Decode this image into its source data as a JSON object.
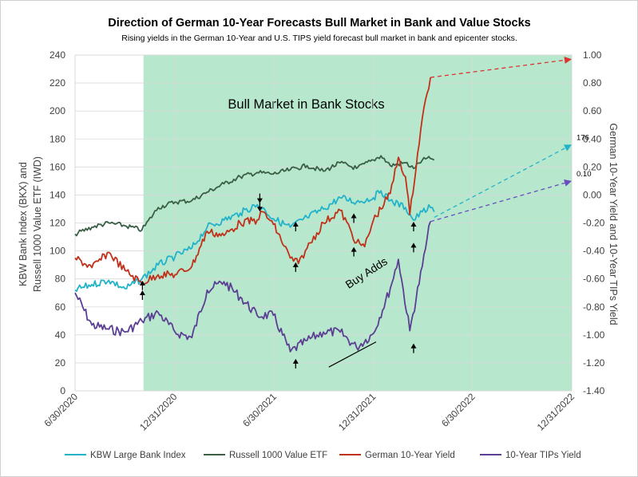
{
  "chart_data": {
    "type": "line",
    "title": "Direction of German 10-Year Forecasts Bull Market in Bank and Value Stocks",
    "subtitle": "Rising yields in the German 10-Year and U.S. TIPS yield forecast bull market in bank and epicenter stocks.",
    "ylabel_left": "KBW Bank Index (BKX) and Russell 1000 Value ETF (IWD)",
    "ylabel_right": "German 10-Year Yield and 10-Year TIPs Yield",
    "ylim_left": [
      0,
      240
    ],
    "ylim_right": [
      -1.4,
      1.0
    ],
    "xlim": [
      "2020-06-30",
      "2022-12-31"
    ],
    "x_ticks": [
      "6/30/2020",
      "12/31/2020",
      "6/30/2021",
      "12/31/2021",
      "6/30/2022",
      "12/31/2022"
    ],
    "y_ticks_left": [
      "0",
      "20",
      "40",
      "60",
      "80",
      "100",
      "120",
      "140",
      "160",
      "180",
      "200",
      "220",
      "240"
    ],
    "y_ticks_right": [
      "-1.40",
      "-1.20",
      "-1.00",
      "-0.80",
      "-0.60",
      "-0.40",
      "-0.20",
      "0.00",
      "0.20",
      "0.40",
      "0.60",
      "0.80",
      "1.00"
    ],
    "shaded_region": {
      "start": "2020-11-03",
      "end": "2022-12-31",
      "label": "Bull Market in Bank Stocks",
      "color": "#b7e8cd"
    },
    "series": [
      {
        "name": "KBW Large Bank Index",
        "axis": "left",
        "color": "#22b2c9",
        "points": [
          [
            "2020-06-30",
            72
          ],
          [
            "2020-07-31",
            76
          ],
          [
            "2020-08-31",
            79
          ],
          [
            "2020-09-30",
            73
          ],
          [
            "2020-10-31",
            80
          ],
          [
            "2020-11-30",
            90
          ],
          [
            "2020-12-31",
            96
          ],
          [
            "2021-01-31",
            102
          ],
          [
            "2021-02-28",
            117
          ],
          [
            "2021-03-31",
            122
          ],
          [
            "2021-04-30",
            127
          ],
          [
            "2021-05-31",
            133
          ],
          [
            "2021-06-15",
            129
          ],
          [
            "2021-06-30",
            123
          ],
          [
            "2021-07-31",
            117
          ],
          [
            "2021-08-31",
            124
          ],
          [
            "2021-09-30",
            130
          ],
          [
            "2021-10-31",
            138
          ],
          [
            "2021-11-30",
            135
          ],
          [
            "2021-12-31",
            138
          ],
          [
            "2022-01-14",
            143
          ],
          [
            "2022-01-31",
            136
          ],
          [
            "2022-02-28",
            131
          ],
          [
            "2022-03-15",
            122
          ],
          [
            "2022-03-31",
            128
          ],
          [
            "2022-04-15",
            131
          ],
          [
            "2022-04-22",
            128
          ]
        ]
      },
      {
        "name": "Russell 1000 Value ETF",
        "axis": "left",
        "color": "#3a5f45",
        "points": [
          [
            "2020-06-30",
            112
          ],
          [
            "2020-07-31",
            117
          ],
          [
            "2020-08-31",
            120
          ],
          [
            "2020-09-30",
            118
          ],
          [
            "2020-10-31",
            115
          ],
          [
            "2020-11-30",
            131
          ],
          [
            "2020-12-31",
            135
          ],
          [
            "2021-01-31",
            136
          ],
          [
            "2021-02-28",
            142
          ],
          [
            "2021-03-31",
            148
          ],
          [
            "2021-04-30",
            153
          ],
          [
            "2021-05-31",
            156
          ],
          [
            "2021-06-30",
            155
          ],
          [
            "2021-07-31",
            158
          ],
          [
            "2021-08-31",
            161
          ],
          [
            "2021-09-30",
            157
          ],
          [
            "2021-10-31",
            163
          ],
          [
            "2021-11-30",
            159
          ],
          [
            "2021-12-31",
            165
          ],
          [
            "2022-01-14",
            168
          ],
          [
            "2022-01-31",
            161
          ],
          [
            "2022-02-28",
            163
          ],
          [
            "2022-03-15",
            159
          ],
          [
            "2022-03-31",
            165
          ],
          [
            "2022-04-15",
            166
          ],
          [
            "2022-04-22",
            165
          ]
        ]
      },
      {
        "name": "German 10-Year Yield",
        "axis": "right",
        "color": "#c0311a",
        "points": [
          [
            "2020-06-30",
            -0.45
          ],
          [
            "2020-07-31",
            -0.52
          ],
          [
            "2020-08-31",
            -0.41
          ],
          [
            "2020-09-30",
            -0.54
          ],
          [
            "2020-10-31",
            -0.63
          ],
          [
            "2020-11-30",
            -0.57
          ],
          [
            "2020-12-31",
            -0.57
          ],
          [
            "2021-01-31",
            -0.51
          ],
          [
            "2021-02-28",
            -0.26
          ],
          [
            "2021-03-31",
            -0.29
          ],
          [
            "2021-04-30",
            -0.2
          ],
          [
            "2021-05-31",
            -0.18
          ],
          [
            "2021-06-10",
            -0.12
          ],
          [
            "2021-06-30",
            -0.21
          ],
          [
            "2021-07-31",
            -0.45
          ],
          [
            "2021-08-15",
            -0.49
          ],
          [
            "2021-08-31",
            -0.38
          ],
          [
            "2021-09-30",
            -0.2
          ],
          [
            "2021-10-31",
            -0.11
          ],
          [
            "2021-11-30",
            -0.34
          ],
          [
            "2021-12-15",
            -0.37
          ],
          [
            "2021-12-31",
            -0.18
          ],
          [
            "2022-01-31",
            0.01
          ],
          [
            "2022-02-15",
            0.27
          ],
          [
            "2022-02-28",
            0.13
          ],
          [
            "2022-03-08",
            -0.14
          ],
          [
            "2022-03-31",
            0.55
          ],
          [
            "2022-04-15",
            0.84
          ]
        ]
      },
      {
        "name": "10-Year TIPs Yield",
        "axis": "right",
        "color": "#5b3f93",
        "points": [
          [
            "2020-06-30",
            -0.7
          ],
          [
            "2020-07-31",
            -0.93
          ],
          [
            "2020-08-31",
            -0.96
          ],
          [
            "2020-09-30",
            -0.98
          ],
          [
            "2020-10-31",
            -0.9
          ],
          [
            "2020-11-30",
            -0.84
          ],
          [
            "2020-12-31",
            -0.98
          ],
          [
            "2021-01-31",
            -1.02
          ],
          [
            "2021-02-28",
            -0.68
          ],
          [
            "2021-03-31",
            -0.62
          ],
          [
            "2021-04-30",
            -0.73
          ],
          [
            "2021-05-31",
            -0.86
          ],
          [
            "2021-06-30",
            -0.86
          ],
          [
            "2021-07-31",
            -1.12
          ],
          [
            "2021-08-31",
            -1.04
          ],
          [
            "2021-09-30",
            -0.98
          ],
          [
            "2021-10-31",
            -0.98
          ],
          [
            "2021-11-30",
            -1.09
          ],
          [
            "2021-12-31",
            -0.99
          ],
          [
            "2022-01-31",
            -0.67
          ],
          [
            "2022-02-15",
            -0.46
          ],
          [
            "2022-03-08",
            -0.97
          ],
          [
            "2022-03-31",
            -0.51
          ],
          [
            "2022-04-15",
            -0.19
          ]
        ]
      }
    ],
    "forecast_arrows": [
      {
        "series": "German 10-Year Yield",
        "axis": "right",
        "from": [
          "2022-04-15",
          0.84
        ],
        "to": [
          "2022-12-31",
          0.97
        ],
        "color": "#e03030"
      },
      {
        "series": "KBW Large Bank Index",
        "axis": "left",
        "from": [
          "2022-04-22",
          124
        ],
        "to": [
          "2022-12-31",
          176
        ],
        "color": "#22b2c9",
        "label": "176"
      },
      {
        "series": "10-Year TIPs Yield",
        "axis": "right",
        "from": [
          "2022-04-15",
          -0.19
        ],
        "to": [
          "2022-12-31",
          0.1
        ],
        "color": "#6a4cc0",
        "label": "0.10"
      }
    ],
    "buy_arrows_up": [
      [
        "2020-11-01",
        65
      ],
      [
        "2020-11-01",
        72
      ],
      [
        "2021-08-10",
        114
      ],
      [
        "2021-08-10",
        85
      ],
      [
        "2021-08-10",
        16
      ],
      [
        "2021-11-25",
        120
      ],
      [
        "2021-11-25",
        96
      ],
      [
        "2022-03-15",
        114
      ],
      [
        "2022-03-15",
        99
      ],
      [
        "2022-03-15",
        27
      ]
    ],
    "buy_arrows_down": [
      [
        "2021-06-05",
        141
      ],
      [
        "2021-06-05",
        135
      ]
    ],
    "trendline": {
      "from": [
        "2021-10-10",
        17
      ],
      "to": [
        "2022-01-05",
        35
      ]
    },
    "annotations": [
      {
        "text": "Buy Adds",
        "at": [
          "2021-12-22",
          82
        ],
        "rotate": -33
      }
    ],
    "legend": {
      "position": "bottom",
      "items": [
        {
          "label": "KBW Large Bank Index",
          "color": "#22b2c9"
        },
        {
          "label": "Russell 1000 Value ETF",
          "color": "#3a5f45"
        },
        {
          "label": "German 10-Year Yield",
          "color": "#c0311a"
        },
        {
          "label": "10-Year TIPs Yield",
          "color": "#5b3f93"
        }
      ]
    }
  }
}
